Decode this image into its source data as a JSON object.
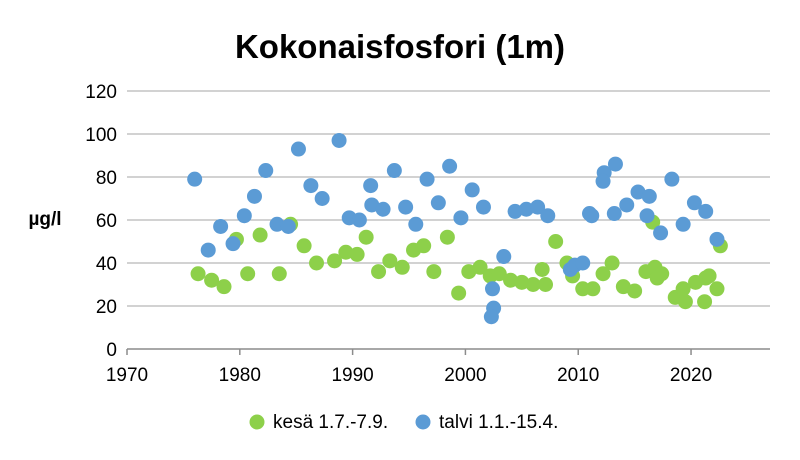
{
  "chart_data": {
    "type": "scatter",
    "title": "Kokonaisfosfori (1m)",
    "xlabel": "",
    "ylabel": "µg/l",
    "xlim": [
      1970,
      2027
    ],
    "ylim": [
      0,
      120
    ],
    "xticks": [
      1970,
      1980,
      1990,
      2000,
      2010,
      2020
    ],
    "yticks": [
      0,
      20,
      40,
      60,
      80,
      100,
      120
    ],
    "grid": "horizontal",
    "legend_position": "bottom",
    "series": [
      {
        "name": "kesä 1.7.-7.9.",
        "color": "#8DD04A",
        "points": [
          [
            1976.3,
            35
          ],
          [
            1977.5,
            32
          ],
          [
            1978.6,
            29
          ],
          [
            1979.7,
            51
          ],
          [
            1980.7,
            35
          ],
          [
            1981.8,
            53
          ],
          [
            1983.5,
            35
          ],
          [
            1984.5,
            58
          ],
          [
            1985.7,
            48
          ],
          [
            1986.8,
            40
          ],
          [
            1988.4,
            41
          ],
          [
            1989.4,
            45
          ],
          [
            1990.4,
            44
          ],
          [
            1991.2,
            52
          ],
          [
            1992.3,
            36
          ],
          [
            1993.3,
            41
          ],
          [
            1994.4,
            38
          ],
          [
            1995.4,
            46
          ],
          [
            1996.3,
            48
          ],
          [
            1997.2,
            36
          ],
          [
            1998.4,
            52
          ],
          [
            1999.4,
            26
          ],
          [
            2000.3,
            36
          ],
          [
            2001.3,
            38
          ],
          [
            2002.2,
            34
          ],
          [
            2003.0,
            35
          ],
          [
            2004.0,
            32
          ],
          [
            2005.0,
            31
          ],
          [
            2006.0,
            30
          ],
          [
            2006.8,
            37
          ],
          [
            2007.1,
            30
          ],
          [
            2008.0,
            50
          ],
          [
            2009.0,
            40
          ],
          [
            2009.5,
            34
          ],
          [
            2010.4,
            28
          ],
          [
            2011.3,
            28
          ],
          [
            2012.2,
            35
          ],
          [
            2013.0,
            40
          ],
          [
            2014.0,
            29
          ],
          [
            2015.0,
            27
          ],
          [
            2016.0,
            36
          ],
          [
            2016.8,
            38
          ],
          [
            2016.6,
            59
          ],
          [
            2017.4,
            35
          ],
          [
            2017.0,
            33
          ],
          [
            2018.6,
            24
          ],
          [
            2019.3,
            28
          ],
          [
            2019.5,
            22
          ],
          [
            2020.4,
            31
          ],
          [
            2021.3,
            33
          ],
          [
            2021.6,
            34
          ],
          [
            2021.2,
            22
          ],
          [
            2022.3,
            28
          ],
          [
            2022.6,
            48
          ]
        ]
      },
      {
        "name": "talvi 1.1.-15.4.",
        "color": "#5B9BD5",
        "points": [
          [
            1976.0,
            79
          ],
          [
            1977.2,
            46
          ],
          [
            1978.3,
            57
          ],
          [
            1979.4,
            49
          ],
          [
            1980.4,
            62
          ],
          [
            1981.3,
            71
          ],
          [
            1982.3,
            83
          ],
          [
            1983.3,
            58
          ],
          [
            1984.3,
            57
          ],
          [
            1985.2,
            93
          ],
          [
            1986.3,
            76
          ],
          [
            1987.3,
            70
          ],
          [
            1988.8,
            97
          ],
          [
            1989.7,
            61
          ],
          [
            1990.6,
            60
          ],
          [
            1991.6,
            76
          ],
          [
            1991.7,
            67
          ],
          [
            1992.7,
            65
          ],
          [
            1993.7,
            83
          ],
          [
            1994.7,
            66
          ],
          [
            1995.6,
            58
          ],
          [
            1996.6,
            79
          ],
          [
            1997.6,
            68
          ],
          [
            1998.6,
            85
          ],
          [
            1999.6,
            61
          ],
          [
            2000.6,
            74
          ],
          [
            2001.6,
            66
          ],
          [
            2002.4,
            28
          ],
          [
            2002.5,
            19
          ],
          [
            2002.3,
            15
          ],
          [
            2003.4,
            43
          ],
          [
            2004.4,
            64
          ],
          [
            2005.4,
            65
          ],
          [
            2006.4,
            66
          ],
          [
            2007.3,
            62
          ],
          [
            2009.3,
            37
          ],
          [
            2009.7,
            39
          ],
          [
            2010.4,
            40
          ],
          [
            2011.0,
            63
          ],
          [
            2011.2,
            62
          ],
          [
            2012.3,
            82
          ],
          [
            2012.2,
            78
          ],
          [
            2013.3,
            86
          ],
          [
            2013.2,
            63
          ],
          [
            2014.3,
            67
          ],
          [
            2015.3,
            73
          ],
          [
            2016.3,
            71
          ],
          [
            2016.1,
            62
          ],
          [
            2017.3,
            54
          ],
          [
            2018.3,
            79
          ],
          [
            2019.3,
            58
          ],
          [
            2020.3,
            68
          ],
          [
            2021.3,
            64
          ],
          [
            2022.3,
            51
          ]
        ]
      }
    ]
  }
}
